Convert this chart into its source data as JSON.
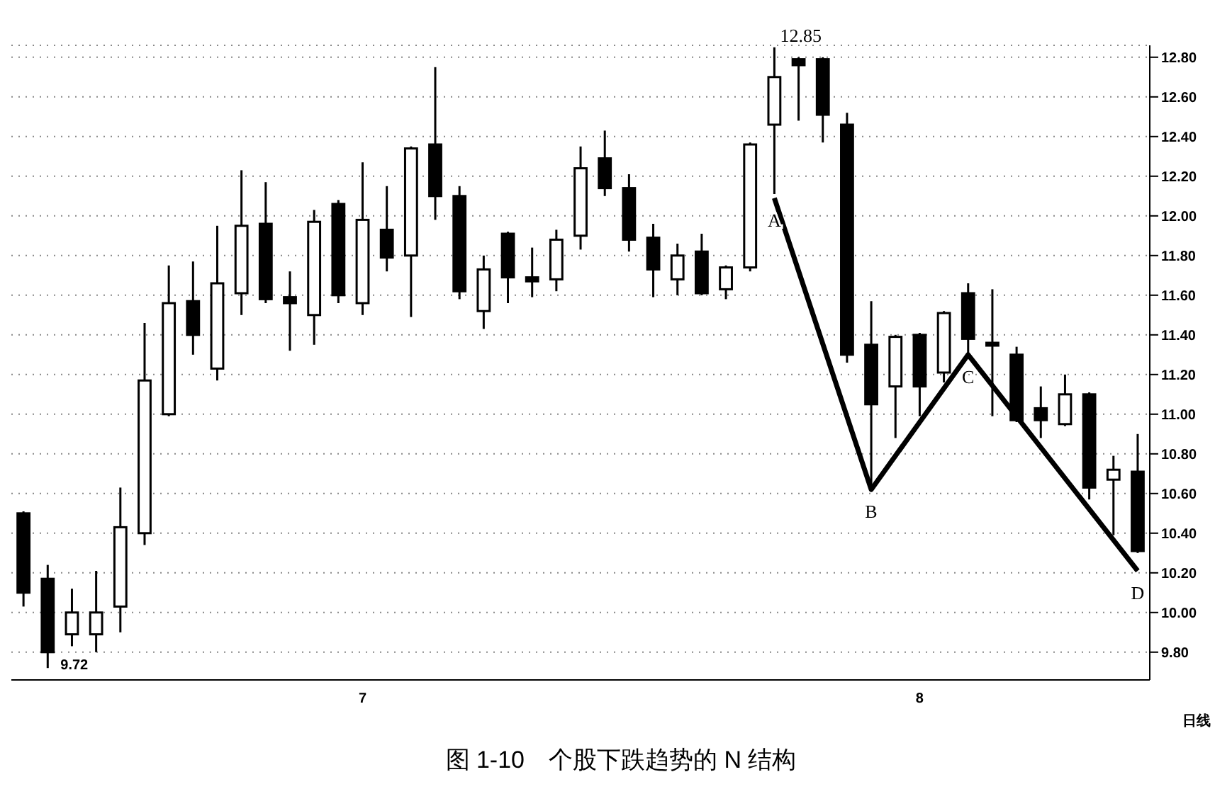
{
  "chart_data": {
    "type": "candlestick",
    "title": "图 1-10　个股下跌趋势的 N 结构",
    "categories": [
      null,
      null,
      null,
      null,
      null,
      null,
      null,
      null,
      null,
      null,
      null,
      null,
      null,
      null,
      "7",
      null,
      null,
      null,
      null,
      null,
      null,
      null,
      null,
      null,
      null,
      null,
      null,
      null,
      null,
      null,
      null,
      null,
      null,
      null,
      null,
      null,
      null,
      "8",
      null,
      null,
      null,
      null,
      null,
      null,
      null,
      null,
      null
    ],
    "series": [
      {
        "type": "candlestick",
        "color": "#000000",
        "ohlc": [
          [
            10.5,
            10.51,
            10.03,
            10.1
          ],
          [
            10.17,
            10.24,
            9.72,
            9.8
          ],
          [
            9.89,
            10.12,
            9.83,
            10.0
          ],
          [
            9.89,
            10.21,
            9.8,
            10.0
          ],
          [
            10.03,
            10.63,
            9.9,
            10.43
          ],
          [
            10.4,
            11.46,
            10.34,
            11.17
          ],
          [
            11.0,
            11.75,
            10.99,
            11.56
          ],
          [
            11.57,
            11.77,
            11.3,
            11.4
          ],
          [
            11.23,
            11.95,
            11.17,
            11.66
          ],
          [
            11.61,
            12.23,
            11.5,
            11.95
          ],
          [
            11.96,
            12.17,
            11.56,
            11.58
          ],
          [
            11.59,
            11.72,
            11.32,
            11.56
          ],
          [
            11.5,
            12.03,
            11.35,
            11.97
          ],
          [
            12.06,
            12.08,
            11.56,
            11.6
          ],
          [
            11.56,
            12.27,
            11.5,
            11.98
          ],
          [
            11.93,
            12.15,
            11.72,
            11.79
          ],
          [
            11.8,
            12.35,
            11.49,
            12.34
          ],
          [
            12.36,
            12.75,
            11.98,
            12.1
          ],
          [
            12.1,
            12.15,
            11.58,
            11.62
          ],
          [
            11.52,
            11.8,
            11.43,
            11.73
          ],
          [
            11.91,
            11.92,
            11.56,
            11.69
          ],
          [
            11.69,
            11.84,
            11.59,
            11.67
          ],
          [
            11.68,
            11.93,
            11.62,
            11.88
          ],
          [
            11.9,
            12.35,
            11.83,
            12.24
          ],
          [
            12.29,
            12.43,
            12.1,
            12.14
          ],
          [
            12.14,
            12.21,
            11.82,
            11.88
          ],
          [
            11.89,
            11.96,
            11.59,
            11.73
          ],
          [
            11.68,
            11.86,
            11.6,
            11.8
          ],
          [
            11.82,
            11.91,
            11.6,
            11.61
          ],
          [
            11.63,
            11.75,
            11.58,
            11.74
          ],
          [
            11.74,
            12.37,
            11.72,
            12.36
          ],
          [
            12.46,
            12.85,
            12.11,
            12.7
          ],
          [
            12.79,
            12.8,
            12.48,
            12.76
          ],
          [
            12.79,
            12.8,
            12.37,
            12.51
          ],
          [
            12.46,
            12.52,
            11.26,
            11.3
          ],
          [
            11.35,
            11.57,
            10.62,
            11.05
          ],
          [
            11.14,
            11.4,
            10.88,
            11.39
          ],
          [
            11.4,
            11.41,
            10.99,
            11.14
          ],
          [
            11.21,
            11.52,
            11.16,
            11.51
          ],
          [
            11.61,
            11.66,
            11.28,
            11.38
          ],
          [
            11.36,
            11.63,
            10.99,
            11.35
          ],
          [
            11.3,
            11.34,
            10.96,
            10.97
          ],
          [
            11.03,
            11.14,
            10.88,
            10.97
          ],
          [
            10.95,
            11.2,
            10.94,
            11.1
          ],
          [
            11.1,
            11.11,
            10.57,
            10.63
          ],
          [
            10.67,
            10.79,
            10.39,
            10.72
          ],
          [
            10.71,
            10.9,
            10.3,
            10.31
          ]
        ],
        "value_labels": [
          null,
          "9.72",
          null,
          null,
          null,
          null,
          null,
          null,
          null,
          null,
          null,
          null,
          null,
          null,
          null,
          null,
          null,
          null,
          null,
          null,
          null,
          null,
          null,
          null,
          null,
          null,
          null,
          null,
          null,
          null,
          null,
          "12.85",
          null,
          null,
          null,
          null,
          null,
          null,
          null,
          null,
          null,
          null,
          null,
          null,
          null,
          null,
          null
        ]
      },
      {
        "type": "line",
        "color": "#000000",
        "values": [
          null,
          null,
          null,
          null,
          null,
          null,
          null,
          null,
          null,
          null,
          null,
          null,
          null,
          null,
          null,
          null,
          null,
          null,
          null,
          null,
          null,
          null,
          null,
          null,
          null,
          null,
          null,
          null,
          null,
          null,
          null,
          12.09,
          null,
          null,
          null,
          10.62,
          null,
          null,
          null,
          11.3,
          null,
          null,
          null,
          null,
          null,
          null,
          10.21
        ],
        "value_labels": [
          null,
          null,
          null,
          null,
          null,
          null,
          null,
          null,
          null,
          null,
          null,
          null,
          null,
          null,
          null,
          null,
          null,
          null,
          null,
          null,
          null,
          null,
          null,
          null,
          null,
          null,
          null,
          null,
          null,
          null,
          null,
          "A",
          null,
          null,
          null,
          "B",
          null,
          null,
          null,
          "C",
          null,
          null,
          null,
          null,
          null,
          null,
          "D"
        ]
      }
    ],
    "ylim": [
      9.66,
      12.86
    ],
    "yticks": [
      {
        "value": 9.8,
        "label": "9.80"
      },
      {
        "value": 10,
        "label": "10.00"
      },
      {
        "value": 10.2,
        "label": "10.20"
      },
      {
        "value": 10.4,
        "label": "10.40"
      },
      {
        "value": 10.6,
        "label": "10.60"
      },
      {
        "value": 10.8,
        "label": "10.80"
      },
      {
        "value": 11,
        "label": "11.00"
      },
      {
        "value": 11.2,
        "label": "11.20"
      },
      {
        "value": 11.4,
        "label": "11.40"
      },
      {
        "value": 11.6,
        "label": "11.60"
      },
      {
        "value": 11.8,
        "label": "11.80"
      },
      {
        "value": 12,
        "label": "12.00"
      },
      {
        "value": 12.2,
        "label": "12.20"
      },
      {
        "value": 12.4,
        "label": "12.40"
      },
      {
        "value": 12.6,
        "label": "12.60"
      },
      {
        "value": 12.8,
        "label": "12.80"
      }
    ],
    "grid": "y",
    "legend": false,
    "annotations": [
      "日线"
    ]
  }
}
